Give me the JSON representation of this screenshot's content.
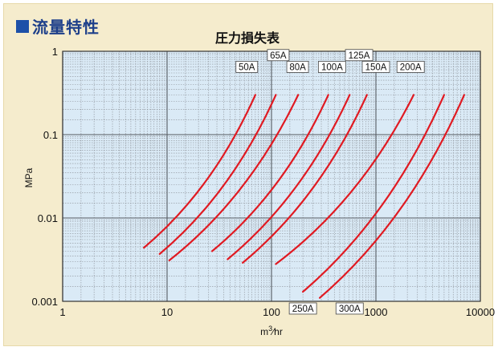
{
  "header": {
    "section_title": "流量特性",
    "square_color": "#1d50a8"
  },
  "chart_data": {
    "type": "line",
    "title": "圧力損失表",
    "xlabel_base": "m",
    "xlabel_sup": "3",
    "xlabel_rest": "∕hr",
    "ylabel": "MPa",
    "xscale": "log",
    "yscale": "log",
    "xlim": [
      1,
      10000
    ],
    "ylim": [
      0.001,
      1
    ],
    "xticks": [
      {
        "value": 1,
        "label": "1"
      },
      {
        "value": 10,
        "label": "10"
      },
      {
        "value": 100,
        "label": "100"
      },
      {
        "value": 1000,
        "label": "1000"
      },
      {
        "value": 10000,
        "label": "10000"
      }
    ],
    "yticks": [
      {
        "value": 0.001,
        "label": "0.001"
      },
      {
        "value": 0.01,
        "label": "0.01"
      },
      {
        "value": 0.1,
        "label": "0.1"
      },
      {
        "value": 1,
        "label": "1"
      }
    ],
    "grid": true,
    "plot_background": "#daeaf6",
    "line_color": "#e01a22",
    "series": [
      {
        "name": "50A",
        "x": [
          6,
          70
        ],
        "y": [
          0.0044,
          0.3
        ]
      },
      {
        "name": "65A",
        "x": [
          8.5,
          110
        ],
        "y": [
          0.0037,
          0.3
        ]
      },
      {
        "name": "80A",
        "x": [
          10.5,
          180
        ],
        "y": [
          0.0031,
          0.3
        ]
      },
      {
        "name": "100A",
        "x": [
          27,
          350
        ],
        "y": [
          0.004,
          0.3
        ]
      },
      {
        "name": "125A",
        "x": [
          38,
          560
        ],
        "y": [
          0.0032,
          0.3
        ]
      },
      {
        "name": "150A",
        "x": [
          53,
          820
        ],
        "y": [
          0.0029,
          0.3
        ]
      },
      {
        "name": "200A",
        "x": [
          110,
          2300
        ],
        "y": [
          0.0028,
          0.3
        ]
      },
      {
        "name": "250A",
        "x": [
          200,
          4500
        ],
        "y": [
          0.0013,
          0.3
        ]
      },
      {
        "name": "300A",
        "x": [
          290,
          7000
        ],
        "y": [
          0.0011,
          0.3
        ]
      }
    ],
    "labels": [
      {
        "name": "50A",
        "x": 58,
        "y": 0.65
      },
      {
        "name": "65A",
        "x": 116,
        "y": 0.9
      },
      {
        "name": "80A",
        "x": 178,
        "y": 0.65
      },
      {
        "name": "100A",
        "x": 380,
        "y": 0.65
      },
      {
        "name": "125A",
        "x": 690,
        "y": 0.9
      },
      {
        "name": "150A",
        "x": 1000,
        "y": 0.65
      },
      {
        "name": "200A",
        "x": 2150,
        "y": 0.65
      },
      {
        "name": "250A",
        "x": 200,
        "y": 0.00082
      },
      {
        "name": "300A",
        "x": 560,
        "y": 0.00082
      }
    ]
  }
}
